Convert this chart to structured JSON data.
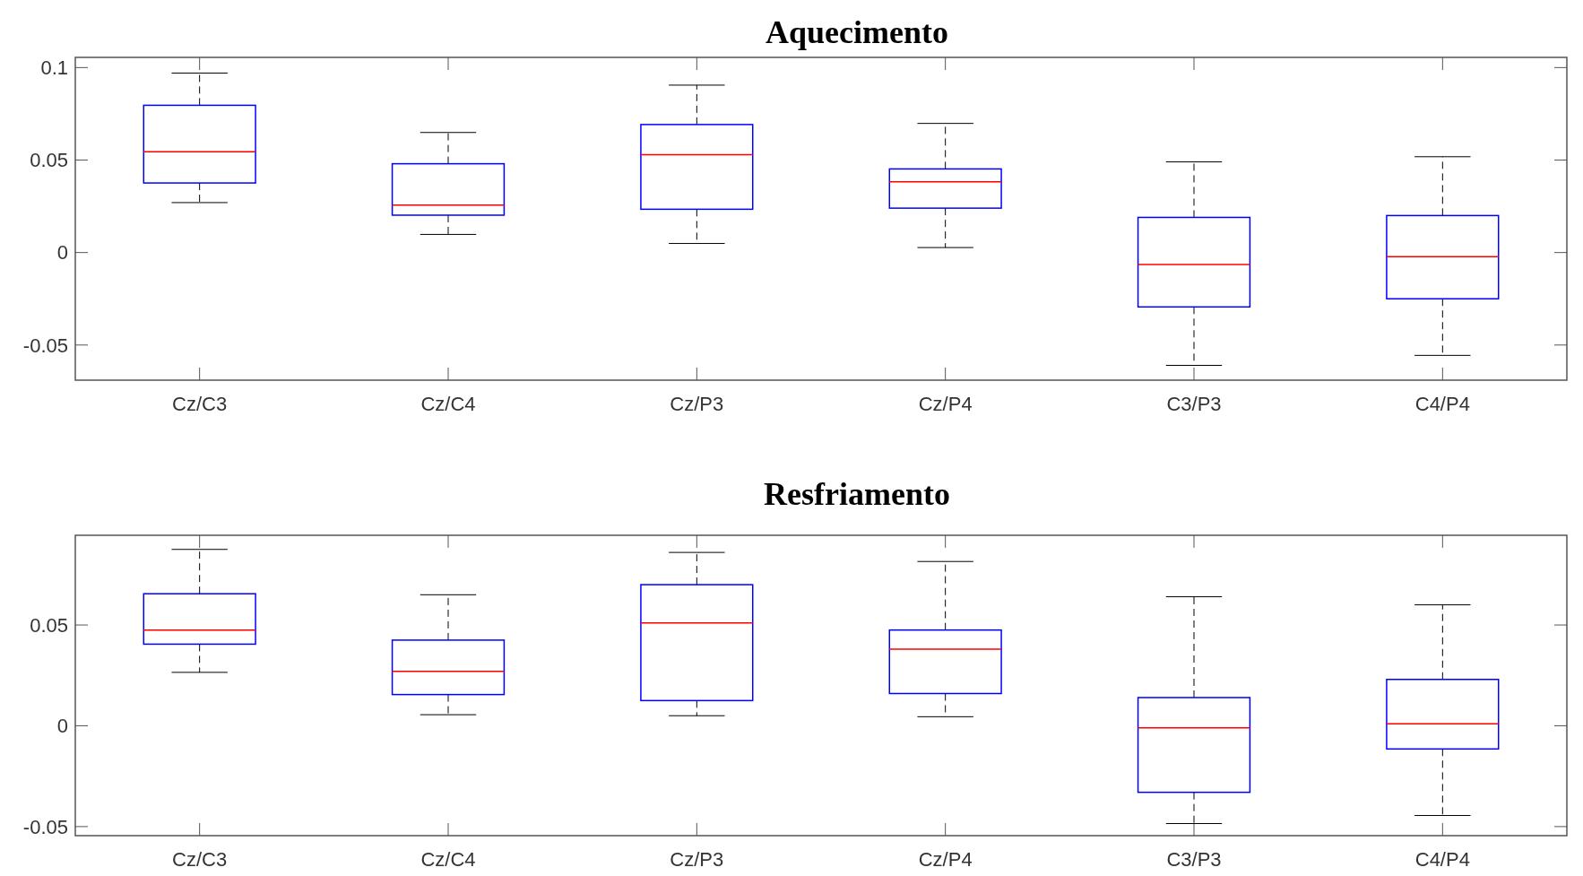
{
  "chart_data": [
    {
      "type": "box",
      "title": "Aquecimento",
      "categories": [
        "Cz/C3",
        "Cz/C4",
        "Cz/P3",
        "Cz/P4",
        "C3/P3",
        "C4/P4"
      ],
      "ylim": [
        -0.069,
        0.1055
      ],
      "yticks": [
        -0.05,
        0,
        0.05,
        0.1
      ],
      "series": [
        {
          "color": "#0000ff",
          "boxes": [
            {
              "low": 0.027,
              "q1": 0.0376,
              "median": 0.0545,
              "q3": 0.0796,
              "high": 0.097
            },
            {
              "low": 0.0098,
              "q1": 0.0202,
              "median": 0.0256,
              "q3": 0.048,
              "high": 0.0649
            },
            {
              "low": 0.0049,
              "q1": 0.0234,
              "median": 0.0529,
              "q3": 0.0692,
              "high": 0.0905
            },
            {
              "low": 0.0027,
              "q1": 0.024,
              "median": 0.0382,
              "q3": 0.0452,
              "high": 0.0698
            },
            {
              "low": -0.061,
              "q1": -0.0294,
              "median": -0.0065,
              "q3": 0.019,
              "high": 0.049
            },
            {
              "low": -0.0556,
              "q1": -0.025,
              "median": -0.0022,
              "q3": 0.02,
              "high": 0.0518
            }
          ]
        }
      ]
    },
    {
      "type": "box",
      "title": "Resfriamento",
      "categories": [
        "Cz/C3",
        "Cz/C4",
        "Cz/P3",
        "Cz/P4",
        "C3/P3",
        "C4/P4"
      ],
      "ylim": [
        -0.0545,
        0.0945
      ],
      "yticks": [
        -0.05,
        0,
        0.05
      ],
      "series": [
        {
          "color": "#0000ff",
          "boxes": [
            {
              "low": 0.0265,
              "q1": 0.0405,
              "median": 0.0475,
              "q3": 0.0655,
              "high": 0.0875
            },
            {
              "low": 0.0055,
              "q1": 0.0155,
              "median": 0.027,
              "q3": 0.0425,
              "high": 0.065
            },
            {
              "low": 0.005,
              "q1": 0.0125,
              "median": 0.051,
              "q3": 0.07,
              "high": 0.086
            },
            {
              "low": 0.0045,
              "q1": 0.016,
              "median": 0.038,
              "q3": 0.0475,
              "high": 0.0815
            },
            {
              "low": -0.0485,
              "q1": -0.033,
              "median": -0.001,
              "q3": 0.014,
              "high": 0.064
            },
            {
              "low": -0.0445,
              "q1": -0.0115,
              "median": 0.001,
              "q3": 0.023,
              "high": 0.06
            }
          ]
        }
      ]
    }
  ]
}
